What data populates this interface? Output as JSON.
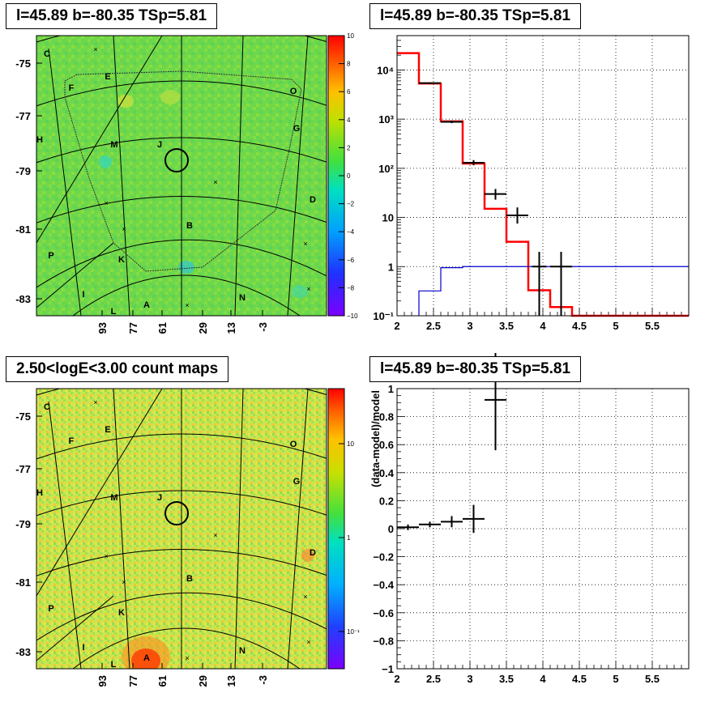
{
  "panels": {
    "tl": {
      "title": "l=45.89 b=-80.35 TSp=5.81"
    },
    "tr": {
      "title": "l=45.89 b=-80.35 TSp=5.81"
    },
    "bl": {
      "title": "2.50<logE<3.00 count maps"
    },
    "br": {
      "title": "l=45.89 b=-80.35 TSp=5.81"
    }
  },
  "sky_maps": {
    "lat_ticks": [
      "-75",
      "-77",
      "-79",
      "-81",
      "-83"
    ],
    "lon_ticks": [
      "93",
      "77",
      "61",
      "29",
      "13",
      "-3"
    ],
    "region_labels": [
      "C",
      "E",
      "F",
      "O",
      "G",
      "H",
      "M",
      "J",
      "D",
      "B",
      "P",
      "K",
      "I",
      "L",
      "A",
      "N"
    ],
    "residual_colorbar": {
      "ticks": [
        "10",
        "8",
        "6",
        "4",
        "2",
        "0",
        "−2",
        "−4",
        "−6",
        "−8",
        "−10"
      ],
      "range": [
        -10,
        10
      ]
    },
    "count_colorbar": {
      "ticks": [
        "10",
        "1",
        "10⁻¹"
      ],
      "scale": "log"
    },
    "colors": {
      "residual_bg": "#6ed84a",
      "count_bg": "#c8e650",
      "source_marker": "#000000"
    }
  },
  "chart_data": [
    {
      "type": "line",
      "id": "spectrum",
      "title": "l=45.89 b=-80.35 TSp=5.81",
      "xlabel": "",
      "ylabel": "",
      "xlim": [
        2,
        6
      ],
      "ylim": [
        0.1,
        50000
      ],
      "yscale": "log",
      "grid": true,
      "x_ticks": [
        "2",
        "2.5",
        "3",
        "3.5",
        "4",
        "4.5",
        "5",
        "5.5"
      ],
      "y_ticks": [
        "10⁻¹",
        "1",
        "10",
        "10²",
        "10³",
        "10⁴"
      ],
      "series": [
        {
          "style": "step",
          "color": "#ff0000",
          "bin_edges": [
            2.0,
            2.3,
            2.6,
            2.9,
            3.2,
            3.5,
            3.8,
            4.1,
            4.4,
            6.0
          ],
          "values": [
            22000,
            5300,
            900,
            125,
            15,
            3.2,
            0.33,
            0.15,
            0.1
          ]
        },
        {
          "style": "step",
          "color": "#0000cc",
          "bin_edges": [
            2.3,
            2.6,
            2.9,
            6.0
          ],
          "values": [
            0.32,
            0.95,
            1.0
          ]
        },
        {
          "style": "errorbar",
          "color": "#000000",
          "points": [
            {
              "x": 2.45,
              "y": 5400,
              "xerr": 0.15,
              "ylo": 5200,
              "yhi": 5600
            },
            {
              "x": 2.75,
              "y": 880,
              "xerr": 0.15,
              "ylo": 830,
              "yhi": 930
            },
            {
              "x": 3.05,
              "y": 130,
              "xerr": 0.15,
              "ylo": 115,
              "yhi": 147
            },
            {
              "x": 3.35,
              "y": 30,
              "xerr": 0.15,
              "ylo": 23,
              "yhi": 38
            },
            {
              "x": 3.65,
              "y": 11,
              "xerr": 0.15,
              "ylo": 7.5,
              "yhi": 16
            },
            {
              "x": 3.95,
              "y": 1,
              "xerr": 0.1,
              "ylo": 0.1,
              "yhi": 2
            },
            {
              "x": 4.25,
              "y": 1,
              "xerr": 0.15,
              "ylo": 0.1,
              "yhi": 2
            }
          ]
        }
      ]
    },
    {
      "type": "scatter",
      "id": "residual",
      "title": "l=45.89 b=-80.35 TSp=5.81",
      "xlabel": "",
      "ylabel": "(data-model)/model",
      "xlim": [
        2,
        6
      ],
      "ylim": [
        -1,
        1
      ],
      "grid": true,
      "x_ticks": [
        "2",
        "2.5",
        "3",
        "3.5",
        "4",
        "4.5",
        "5",
        "5.5"
      ],
      "y_ticks": [
        "1",
        "0.8",
        "0.6",
        "0.4",
        "0.2",
        "0",
        "−0.2",
        "−0.4",
        "−0.6",
        "−0.8",
        "−1"
      ],
      "points": [
        {
          "x": 2.15,
          "y": 0.01,
          "xerr": 0.15,
          "yerr": 0.02
        },
        {
          "x": 2.45,
          "y": 0.03,
          "xerr": 0.15,
          "yerr": 0.02
        },
        {
          "x": 2.75,
          "y": 0.05,
          "xerr": 0.15,
          "yerr": 0.04
        },
        {
          "x": 3.05,
          "y": 0.07,
          "xerr": 0.15,
          "yerr": 0.1
        },
        {
          "x": 3.35,
          "y": 0.92,
          "xerr": 0.15,
          "yerr": 0.36
        }
      ]
    }
  ]
}
